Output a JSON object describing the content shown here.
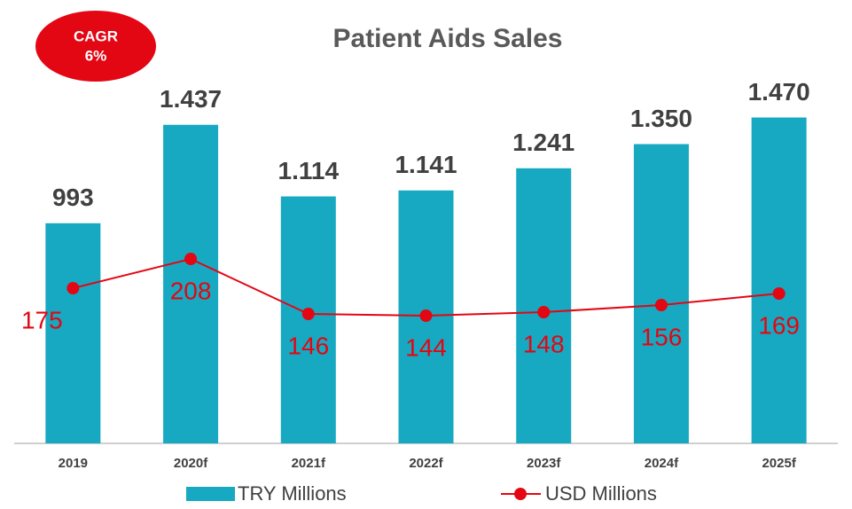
{
  "chart_data": {
    "type": "bar-line",
    "title": "Patient Aids Sales",
    "annotations": [
      "CAGR",
      "6%"
    ],
    "categories": [
      "2019",
      "2020f",
      "2021f",
      "2022f",
      "2023f",
      "2024f",
      "2025f"
    ],
    "series": [
      {
        "name": "TRY Millions",
        "type": "bar",
        "color": "#17a9c1",
        "values": [
          993,
          1437,
          1114,
          1141,
          1241,
          1350,
          1470
        ],
        "value_labels": [
          "993",
          "1.437",
          "1.114",
          "1.141",
          "1.241",
          "1.350",
          "1.470"
        ]
      },
      {
        "name": "USD Millions",
        "type": "line",
        "axis": "y2",
        "color": "#e30613",
        "values": [
          175,
          208,
          146,
          144,
          148,
          156,
          169
        ]
      }
    ],
    "ylim": [
      0,
      1600
    ],
    "y2lim": [
      0,
      400
    ]
  }
}
